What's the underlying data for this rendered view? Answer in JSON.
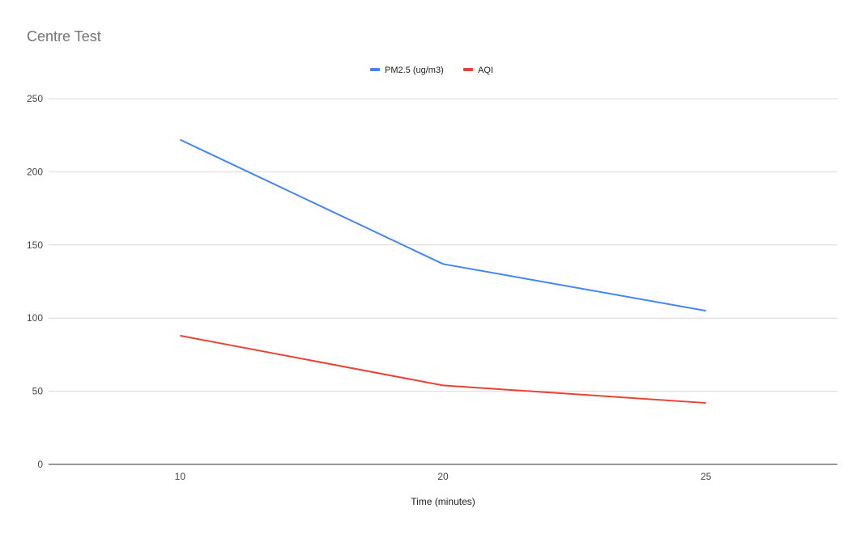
{
  "chart_data": {
    "type": "line",
    "title": "Centre Test",
    "xlabel": "Time (minutes)",
    "ylabel": "",
    "categories": [
      "10",
      "20",
      "25"
    ],
    "series": [
      {
        "name": "PM2.5 (ug/m3)",
        "values": [
          222,
          137,
          105
        ],
        "color": "#4285f4"
      },
      {
        "name": "AQI",
        "values": [
          88,
          54,
          42
        ],
        "color": "#ea4335"
      }
    ],
    "ylim": [
      0,
      250
    ],
    "yticks": [
      "0",
      "50",
      "100",
      "150",
      "200",
      "250"
    ],
    "grid": true,
    "legend": "top-center"
  }
}
